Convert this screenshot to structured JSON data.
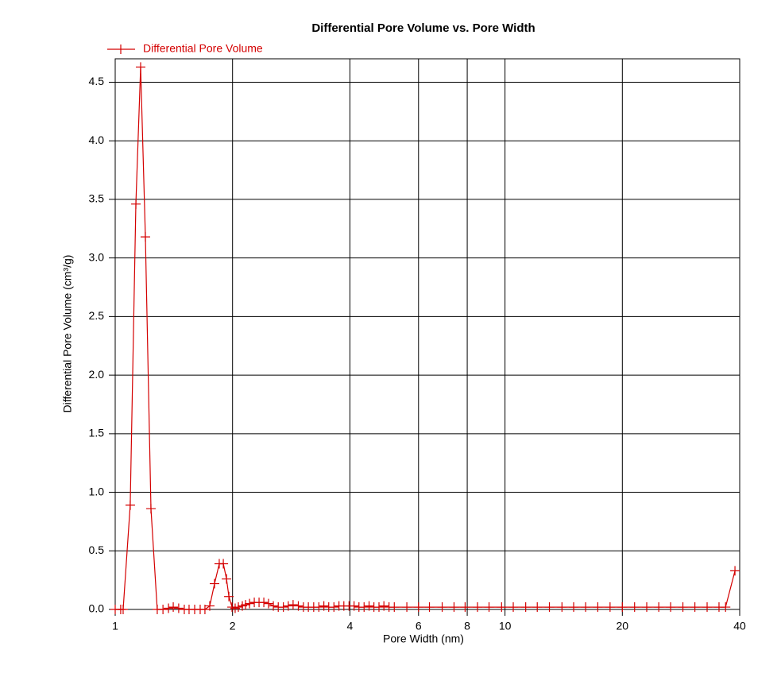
{
  "chart_data": {
    "type": "line",
    "title": "Differential Pore Volume vs. Pore Width",
    "x_label": "Pore Width (nm)",
    "y_label": "Differential Pore Volume (cm³/g)",
    "x_scale": "log",
    "grid": true,
    "legend": "top-left",
    "xlim": [
      1,
      40
    ],
    "xticks": [
      1,
      2,
      4,
      6,
      8,
      10,
      20,
      40
    ],
    "ylim": [
      0,
      4.7
    ],
    "yticks": [
      {
        "value": 0,
        "label": "0.0"
      },
      0.5,
      {
        "value": 1,
        "label": "1.0"
      },
      1.5,
      {
        "value": 2,
        "label": "2.0"
      },
      2.5,
      {
        "value": 3,
        "label": "3.0"
      },
      3.5,
      {
        "value": 4,
        "label": "4.0"
      },
      4.5
    ],
    "series": [
      {
        "name": "Differential Pore Volume",
        "color": "#d40000",
        "x": [
          1.0,
          1.033,
          1.048,
          1.093,
          1.13,
          1.162,
          1.195,
          1.235,
          1.282,
          1.326,
          1.37,
          1.409,
          1.455,
          1.504,
          1.547,
          1.599,
          1.652,
          1.699,
          1.748,
          1.798,
          1.849,
          1.894,
          1.93,
          1.957,
          1.994,
          2.031,
          2.07,
          2.119,
          2.16,
          2.211,
          2.274,
          2.339,
          2.406,
          2.474,
          2.545,
          2.62,
          2.7,
          2.78,
          2.86,
          2.95,
          3.04,
          3.13,
          3.23,
          3.33,
          3.43,
          3.53,
          3.64,
          3.75,
          3.86,
          3.98,
          4.1,
          4.22,
          4.35,
          4.48,
          4.61,
          4.75,
          4.89,
          5.04,
          5.2,
          5.6,
          6.0,
          6.4,
          6.9,
          7.4,
          7.9,
          8.5,
          9.1,
          9.8,
          10.5,
          11.3,
          12.1,
          13.0,
          14.0,
          15.0,
          16.1,
          17.3,
          18.6,
          20.0,
          21.5,
          23.1,
          24.8,
          26.6,
          28.6,
          30.7,
          33.0,
          35.4,
          36.8,
          38.9
        ],
        "values": [
          0,
          0,
          0,
          0.89,
          3.46,
          4.63,
          3.18,
          0.86,
          0,
          0,
          0.01,
          0.02,
          0.01,
          0,
          0,
          0,
          0,
          0,
          0.03,
          0.22,
          0.39,
          0.39,
          0.26,
          0.11,
          0.02,
          0.01,
          0.02,
          0.03,
          0.04,
          0.05,
          0.06,
          0.06,
          0.06,
          0.05,
          0.03,
          0.02,
          0.02,
          0.03,
          0.04,
          0.03,
          0.02,
          0.02,
          0.02,
          0.02,
          0.03,
          0.02,
          0.02,
          0.03,
          0.03,
          0.03,
          0.03,
          0.02,
          0.02,
          0.03,
          0.02,
          0.02,
          0.03,
          0.02,
          0.02,
          0.02,
          0.02,
          0.02,
          0.02,
          0.02,
          0.02,
          0.02,
          0.02,
          0.02,
          0.02,
          0.02,
          0.02,
          0.02,
          0.02,
          0.02,
          0.02,
          0.02,
          0.02,
          0.02,
          0.02,
          0.02,
          0.02,
          0.02,
          0.02,
          0.02,
          0.02,
          0.02,
          0.02,
          0.33
        ]
      }
    ]
  }
}
